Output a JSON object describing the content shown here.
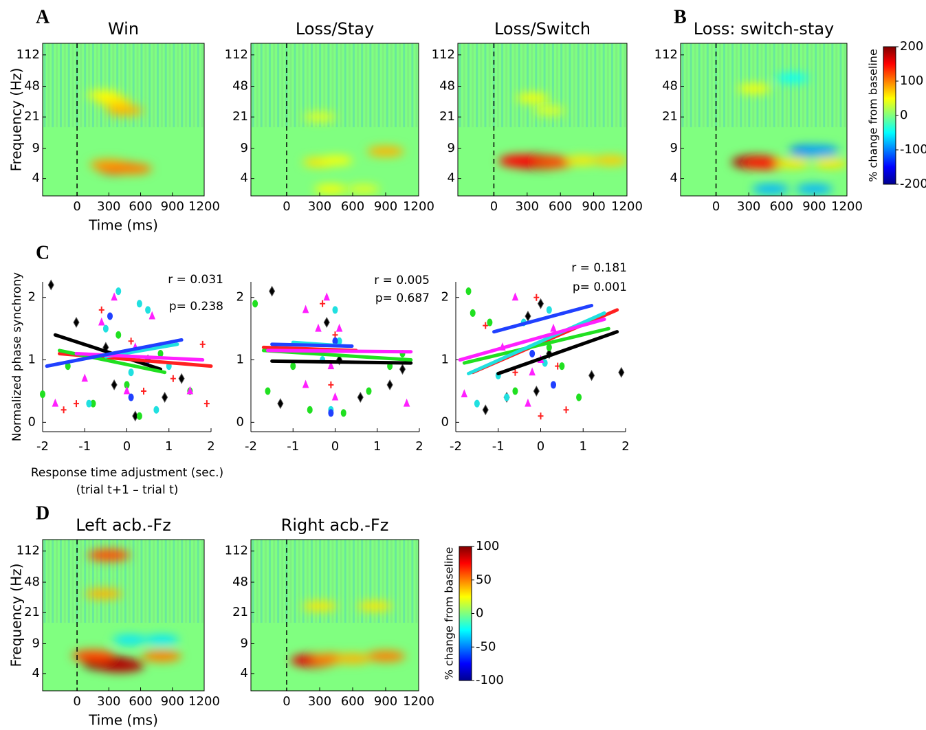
{
  "chart_data": [
    {
      "type": "heatmap",
      "panel_label": "A",
      "title": "Win",
      "xlabel": "Time (ms)",
      "ylabel": "Frequency (Hz)",
      "xlim": [
        -325,
        1200
      ],
      "xticks": [
        0,
        300,
        600,
        900,
        1200
      ],
      "ylim": [
        2.5,
        153
      ],
      "yticks": [
        4,
        9,
        21,
        48,
        112
      ],
      "yscale": "log",
      "clim": [
        -200,
        200
      ],
      "hotspots": [
        [
          400,
          5.3,
          150
        ],
        [
          300,
          5.8,
          90
        ],
        [
          520,
          5.2,
          100
        ],
        [
          350,
          32,
          60
        ],
        [
          450,
          25,
          80
        ],
        [
          250,
          38,
          50
        ]
      ]
    },
    {
      "type": "heatmap",
      "title": "Loss/Stay",
      "xlim": [
        -325,
        1200
      ],
      "xticks": [
        0,
        300,
        600,
        900,
        1200
      ],
      "ylim": [
        2.5,
        153
      ],
      "yticks": [
        4,
        9,
        21,
        48,
        112
      ],
      "yscale": "log",
      "clim": [
        -200,
        200
      ],
      "hotspots": [
        [
          300,
          6.2,
          60
        ],
        [
          450,
          6.5,
          50
        ],
        [
          900,
          8.3,
          80
        ],
        [
          400,
          3,
          50
        ],
        [
          700,
          3,
          40
        ],
        [
          300,
          21,
          40
        ]
      ]
    },
    {
      "type": "heatmap",
      "title": "Loss/Switch",
      "xlim": [
        -325,
        1200
      ],
      "xticks": [
        0,
        300,
        600,
        900,
        1200
      ],
      "ylim": [
        2.5,
        153
      ],
      "yticks": [
        4,
        9,
        21,
        48,
        112
      ],
      "yscale": "log",
      "clim": [
        -200,
        200
      ],
      "hotspots": [
        [
          350,
          6.3,
          200
        ],
        [
          450,
          6.2,
          190
        ],
        [
          250,
          6.4,
          150
        ],
        [
          550,
          6.2,
          120
        ],
        [
          800,
          6.5,
          60
        ],
        [
          1050,
          6.5,
          70
        ],
        [
          350,
          35,
          50
        ],
        [
          500,
          25,
          40
        ]
      ]
    },
    {
      "type": "heatmap",
      "panel_label": "B",
      "title": "Loss: switch-stay",
      "xlim": [
        -325,
        1200
      ],
      "xticks": [
        0,
        300,
        600,
        900,
        1200
      ],
      "ylim": [
        2.5,
        153
      ],
      "yticks": [
        4,
        9,
        21,
        48,
        112
      ],
      "yscale": "log",
      "clim": [
        -200,
        200
      ],
      "colorbar": {
        "label": "% change from baseline",
        "ticks": [
          200,
          100,
          0,
          -100,
          -200
        ]
      },
      "hotspots": [
        [
          370,
          6.2,
          180
        ],
        [
          450,
          6,
          140
        ],
        [
          700,
          6,
          60
        ],
        [
          1050,
          6,
          60
        ],
        [
          850,
          8.5,
          -100
        ],
        [
          950,
          8.5,
          -90
        ],
        [
          500,
          3,
          -80
        ],
        [
          900,
          3,
          -80
        ],
        [
          350,
          45,
          50
        ],
        [
          700,
          60,
          -50
        ]
      ]
    },
    {
      "type": "scatter",
      "panel_label": "C",
      "ylabel": "Normalized phase synchrony",
      "xlabel": [
        "Response time adjustment (sec.)",
        "(trial t+1 – trial t)"
      ],
      "xlim": [
        -2,
        2
      ],
      "xticks": [
        -2,
        -1,
        0,
        1,
        2
      ],
      "ylim": [
        -0.15,
        2.25
      ],
      "yticks": [
        0,
        1,
        2
      ],
      "annotations": [
        "r = 0.031",
        "p= 0.238"
      ],
      "series": [
        {
          "color": "#000000",
          "marker": "diamond",
          "x": [
            -1.8,
            -1.2,
            -0.5,
            -0.3,
            0.2,
            0.5,
            0.9,
            1.3
          ],
          "values": [
            2.2,
            1.6,
            1.2,
            0.6,
            0.1,
            1.0,
            0.4,
            0.7
          ],
          "fit_x": [
            -1.7,
            0.8
          ],
          "fit_values": [
            1.4,
            0.85
          ]
        },
        {
          "color": "#ff2020",
          "marker": "plus",
          "x": [
            -1.5,
            -1.2,
            -0.6,
            0.1,
            0.4,
            1.1,
            1.8,
            1.9
          ],
          "values": [
            0.2,
            0.3,
            1.8,
            1.3,
            0.5,
            0.7,
            1.25,
            0.3
          ],
          "fit_x": [
            -1.6,
            2.0
          ],
          "fit_values": [
            1.1,
            0.9
          ]
        },
        {
          "color": "#20e020",
          "marker": "ellipse",
          "x": [
            -2.0,
            -1.4,
            -0.8,
            -0.2,
            0.0,
            0.3,
            0.8,
            1.5
          ],
          "values": [
            0.45,
            0.9,
            0.3,
            1.4,
            0.6,
            0.1,
            1.1,
            0.5
          ],
          "fit_x": [
            -1.6,
            0.9
          ],
          "fit_values": [
            1.15,
            0.8
          ]
        },
        {
          "color": "#20e0e0",
          "marker": "ellipse",
          "x": [
            -0.9,
            -0.5,
            -0.2,
            0.1,
            0.3,
            0.7,
            1.0,
            0.5
          ],
          "values": [
            0.3,
            1.5,
            2.1,
            0.8,
            1.9,
            0.2,
            0.9,
            1.8
          ],
          "fit_x": [
            -0.5,
            1.2
          ],
          "fit_values": [
            1.05,
            1.25
          ]
        },
        {
          "color": "#ff20ff",
          "marker": "triangle",
          "x": [
            -1.7,
            -1.0,
            -0.6,
            -0.3,
            0.0,
            0.2,
            0.6,
            1.5
          ],
          "values": [
            0.3,
            0.7,
            1.6,
            2.0,
            0.5,
            1.2,
            1.7,
            0.5
          ],
          "fit_x": [
            -1.2,
            1.8
          ],
          "fit_values": [
            1.1,
            1.0
          ]
        },
        {
          "color": "#2040ff",
          "marker": "ellipse",
          "x": [
            -0.4,
            0.1,
            0.5
          ],
          "values": [
            1.7,
            0.4,
            1.0
          ],
          "fit_x": [
            -1.9,
            1.3
          ],
          "fit_values": [
            0.9,
            1.32
          ]
        }
      ]
    },
    {
      "type": "scatter",
      "xlim": [
        -2,
        2
      ],
      "xticks": [
        -2,
        -1,
        0,
        1,
        2
      ],
      "ylim": [
        -0.15,
        2.25
      ],
      "yticks": [
        0,
        1,
        2
      ],
      "annotations": [
        "r = 0.005",
        "p= 0.687"
      ],
      "series": [
        {
          "color": "#000000",
          "marker": "diamond",
          "x": [
            -1.5,
            -1.3,
            -0.2,
            0.1,
            1.3,
            1.6,
            0.6
          ],
          "values": [
            2.1,
            0.3,
            1.6,
            1.0,
            0.6,
            0.85,
            0.4
          ],
          "fit_x": [
            -1.5,
            1.8
          ],
          "fit_values": [
            0.98,
            0.95
          ]
        },
        {
          "color": "#ff2020",
          "marker": "plus",
          "x": [
            -0.3,
            0.0,
            -0.1
          ],
          "values": [
            1.9,
            1.4,
            0.6
          ],
          "fit_x": [
            -1.7,
            0.5
          ],
          "fit_values": [
            1.2,
            1.15
          ]
        },
        {
          "color": "#20e020",
          "marker": "ellipse",
          "x": [
            -1.9,
            -1.0,
            -0.6,
            0.2,
            0.8,
            1.6,
            1.3,
            -1.6
          ],
          "values": [
            1.9,
            0.9,
            0.2,
            0.15,
            0.5,
            1.1,
            0.9,
            0.5
          ],
          "fit_x": [
            -1.7,
            1.8
          ],
          "fit_values": [
            1.15,
            1.0
          ]
        },
        {
          "color": "#20e0e0",
          "marker": "ellipse",
          "x": [
            -0.3,
            0.0,
            0.1,
            -0.1
          ],
          "values": [
            1.0,
            1.8,
            1.3,
            0.2
          ],
          "fit_x": [
            -1.0,
            0.3
          ],
          "fit_values": [
            1.28,
            1.22
          ]
        },
        {
          "color": "#ff20ff",
          "marker": "triangle",
          "x": [
            -0.7,
            -0.4,
            -0.2,
            0.0,
            0.1,
            -0.1,
            1.7,
            -0.7
          ],
          "values": [
            1.8,
            1.5,
            2.0,
            0.4,
            1.5,
            0.9,
            0.3,
            0.6
          ],
          "fit_x": [
            -1.6,
            1.8
          ],
          "fit_values": [
            1.15,
            1.13
          ]
        },
        {
          "color": "#2040ff",
          "marker": "ellipse",
          "x": [
            -0.1,
            0.0
          ],
          "values": [
            0.15,
            1.3
          ],
          "fit_x": [
            -1.5,
            0.4
          ],
          "fit_values": [
            1.25,
            1.22
          ]
        }
      ]
    },
    {
      "type": "scatter",
      "xlim": [
        -2,
        2
      ],
      "xticks": [
        -2,
        -1,
        0,
        1,
        2
      ],
      "ylim": [
        -0.15,
        2.25
      ],
      "yticks": [
        0,
        1,
        2
      ],
      "annotations": [
        "r = 0.181",
        "p= 0.001"
      ],
      "series": [
        {
          "color": "#000000",
          "marker": "diamond",
          "x": [
            -1.3,
            -0.8,
            -0.3,
            0.0,
            0.2,
            1.2,
            1.9,
            -0.1
          ],
          "values": [
            0.2,
            0.4,
            1.7,
            1.9,
            1.1,
            0.75,
            0.8,
            0.5
          ],
          "fit_x": [
            -1.0,
            1.8
          ],
          "fit_values": [
            0.78,
            1.45
          ]
        },
        {
          "color": "#ff2020",
          "marker": "plus",
          "x": [
            -1.3,
            -0.6,
            -0.1,
            0.4,
            0.6,
            0.0
          ],
          "values": [
            1.55,
            0.8,
            2.0,
            0.9,
            0.2,
            0.1
          ],
          "fit_x": [
            -1.6,
            1.8
          ],
          "fit_values": [
            0.8,
            1.8
          ]
        },
        {
          "color": "#20e020",
          "marker": "ellipse",
          "x": [
            -1.7,
            -1.6,
            -1.2,
            -0.6,
            0.2,
            0.5,
            0.9
          ],
          "values": [
            2.1,
            1.75,
            1.6,
            0.5,
            1.2,
            0.9,
            0.4
          ],
          "fit_x": [
            -1.8,
            1.6
          ],
          "fit_values": [
            0.95,
            1.5
          ]
        },
        {
          "color": "#20e0e0",
          "marker": "ellipse",
          "x": [
            -1.5,
            -1.0,
            -0.4,
            0.1,
            0.2,
            -0.8
          ],
          "values": [
            0.3,
            0.75,
            1.6,
            0.95,
            1.8,
            0.4
          ],
          "fit_x": [
            -1.7,
            1.5
          ],
          "fit_values": [
            0.78,
            1.75
          ]
        },
        {
          "color": "#ff20ff",
          "marker": "triangle",
          "x": [
            -1.8,
            -0.9,
            -0.6,
            -0.3,
            0.0,
            0.3,
            -0.2
          ],
          "values": [
            0.45,
            1.2,
            2.0,
            0.3,
            1.0,
            1.5,
            0.8
          ],
          "fit_x": [
            -1.9,
            1.5
          ],
          "fit_values": [
            1.0,
            1.65
          ]
        },
        {
          "color": "#2040ff",
          "marker": "ellipse",
          "x": [
            -0.2,
            0.3
          ],
          "values": [
            1.1,
            0.6
          ],
          "fit_x": [
            -1.1,
            1.2
          ],
          "fit_values": [
            1.45,
            1.87
          ]
        }
      ]
    },
    {
      "type": "heatmap",
      "panel_label": "D",
      "title": "Left acb.-Fz",
      "xlabel": "Time (ms)",
      "ylabel": "Frequency (Hz)",
      "xlim": [
        -325,
        1200
      ],
      "xticks": [
        0,
        300,
        600,
        900,
        1200
      ],
      "ylim": [
        2.5,
        153
      ],
      "yticks": [
        4,
        9,
        21,
        48,
        112
      ],
      "yscale": "log",
      "clim": [
        -100,
        100
      ],
      "hotspots": [
        [
          300,
          5.3,
          100
        ],
        [
          400,
          5,
          90
        ],
        [
          150,
          6.5,
          60
        ],
        [
          800,
          6.4,
          50
        ],
        [
          500,
          10,
          -30
        ],
        [
          800,
          10,
          -30
        ],
        [
          300,
          100,
          60
        ],
        [
          250,
          35,
          40
        ]
      ]
    },
    {
      "type": "heatmap",
      "title": "Right acb.-Fz",
      "xlim": [
        -325,
        1200
      ],
      "xticks": [
        0,
        300,
        600,
        900,
        1200
      ],
      "ylim": [
        2.5,
        153
      ],
      "yticks": [
        4,
        9,
        21,
        48,
        112
      ],
      "yscale": "log",
      "clim": [
        -100,
        100
      ],
      "colorbar": {
        "label": "% change from baseline",
        "ticks": [
          100,
          50,
          0,
          -50,
          -100
        ]
      },
      "hotspots": [
        [
          250,
          5.7,
          80
        ],
        [
          400,
          6,
          50
        ],
        [
          900,
          6.4,
          50
        ],
        [
          600,
          6,
          40
        ],
        [
          300,
          25,
          30
        ],
        [
          800,
          25,
          30
        ]
      ]
    }
  ]
}
